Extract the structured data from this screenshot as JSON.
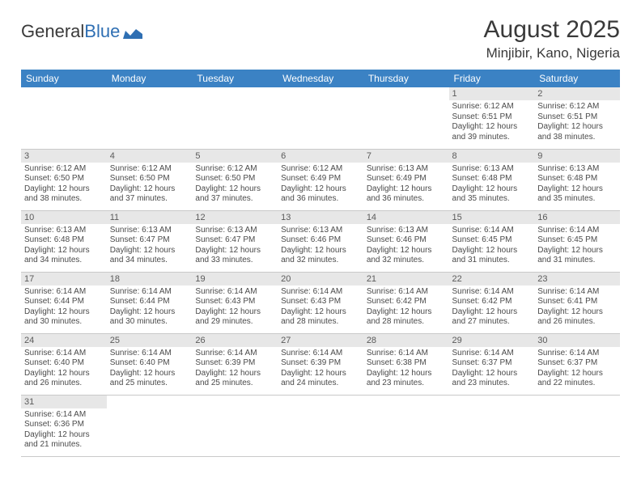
{
  "logo": {
    "text1": "General",
    "text2": "Blue"
  },
  "title": "August 2025",
  "location": "Minjibir, Kano, Nigeria",
  "colors": {
    "header_bg": "#3b82c4",
    "header_fg": "#ffffff",
    "daynum_bg": "#e7e7e7",
    "text": "#4a4a4a",
    "border": "#c9c9c9"
  },
  "weekdays": [
    "Sunday",
    "Monday",
    "Tuesday",
    "Wednesday",
    "Thursday",
    "Friday",
    "Saturday"
  ],
  "weeks": [
    [
      null,
      null,
      null,
      null,
      null,
      {
        "num": "1",
        "sunrise": "6:12 AM",
        "sunset": "6:51 PM",
        "daylight": "12 hours and 39 minutes."
      },
      {
        "num": "2",
        "sunrise": "6:12 AM",
        "sunset": "6:51 PM",
        "daylight": "12 hours and 38 minutes."
      }
    ],
    [
      {
        "num": "3",
        "sunrise": "6:12 AM",
        "sunset": "6:50 PM",
        "daylight": "12 hours and 38 minutes."
      },
      {
        "num": "4",
        "sunrise": "6:12 AM",
        "sunset": "6:50 PM",
        "daylight": "12 hours and 37 minutes."
      },
      {
        "num": "5",
        "sunrise": "6:12 AM",
        "sunset": "6:50 PM",
        "daylight": "12 hours and 37 minutes."
      },
      {
        "num": "6",
        "sunrise": "6:12 AM",
        "sunset": "6:49 PM",
        "daylight": "12 hours and 36 minutes."
      },
      {
        "num": "7",
        "sunrise": "6:13 AM",
        "sunset": "6:49 PM",
        "daylight": "12 hours and 36 minutes."
      },
      {
        "num": "8",
        "sunrise": "6:13 AM",
        "sunset": "6:48 PM",
        "daylight": "12 hours and 35 minutes."
      },
      {
        "num": "9",
        "sunrise": "6:13 AM",
        "sunset": "6:48 PM",
        "daylight": "12 hours and 35 minutes."
      }
    ],
    [
      {
        "num": "10",
        "sunrise": "6:13 AM",
        "sunset": "6:48 PM",
        "daylight": "12 hours and 34 minutes."
      },
      {
        "num": "11",
        "sunrise": "6:13 AM",
        "sunset": "6:47 PM",
        "daylight": "12 hours and 34 minutes."
      },
      {
        "num": "12",
        "sunrise": "6:13 AM",
        "sunset": "6:47 PM",
        "daylight": "12 hours and 33 minutes."
      },
      {
        "num": "13",
        "sunrise": "6:13 AM",
        "sunset": "6:46 PM",
        "daylight": "12 hours and 32 minutes."
      },
      {
        "num": "14",
        "sunrise": "6:13 AM",
        "sunset": "6:46 PM",
        "daylight": "12 hours and 32 minutes."
      },
      {
        "num": "15",
        "sunrise": "6:14 AM",
        "sunset": "6:45 PM",
        "daylight": "12 hours and 31 minutes."
      },
      {
        "num": "16",
        "sunrise": "6:14 AM",
        "sunset": "6:45 PM",
        "daylight": "12 hours and 31 minutes."
      }
    ],
    [
      {
        "num": "17",
        "sunrise": "6:14 AM",
        "sunset": "6:44 PM",
        "daylight": "12 hours and 30 minutes."
      },
      {
        "num": "18",
        "sunrise": "6:14 AM",
        "sunset": "6:44 PM",
        "daylight": "12 hours and 30 minutes."
      },
      {
        "num": "19",
        "sunrise": "6:14 AM",
        "sunset": "6:43 PM",
        "daylight": "12 hours and 29 minutes."
      },
      {
        "num": "20",
        "sunrise": "6:14 AM",
        "sunset": "6:43 PM",
        "daylight": "12 hours and 28 minutes."
      },
      {
        "num": "21",
        "sunrise": "6:14 AM",
        "sunset": "6:42 PM",
        "daylight": "12 hours and 28 minutes."
      },
      {
        "num": "22",
        "sunrise": "6:14 AM",
        "sunset": "6:42 PM",
        "daylight": "12 hours and 27 minutes."
      },
      {
        "num": "23",
        "sunrise": "6:14 AM",
        "sunset": "6:41 PM",
        "daylight": "12 hours and 26 minutes."
      }
    ],
    [
      {
        "num": "24",
        "sunrise": "6:14 AM",
        "sunset": "6:40 PM",
        "daylight": "12 hours and 26 minutes."
      },
      {
        "num": "25",
        "sunrise": "6:14 AM",
        "sunset": "6:40 PM",
        "daylight": "12 hours and 25 minutes."
      },
      {
        "num": "26",
        "sunrise": "6:14 AM",
        "sunset": "6:39 PM",
        "daylight": "12 hours and 25 minutes."
      },
      {
        "num": "27",
        "sunrise": "6:14 AM",
        "sunset": "6:39 PM",
        "daylight": "12 hours and 24 minutes."
      },
      {
        "num": "28",
        "sunrise": "6:14 AM",
        "sunset": "6:38 PM",
        "daylight": "12 hours and 23 minutes."
      },
      {
        "num": "29",
        "sunrise": "6:14 AM",
        "sunset": "6:37 PM",
        "daylight": "12 hours and 23 minutes."
      },
      {
        "num": "30",
        "sunrise": "6:14 AM",
        "sunset": "6:37 PM",
        "daylight": "12 hours and 22 minutes."
      }
    ],
    [
      {
        "num": "31",
        "sunrise": "6:14 AM",
        "sunset": "6:36 PM",
        "daylight": "12 hours and 21 minutes."
      },
      null,
      null,
      null,
      null,
      null,
      null
    ]
  ],
  "labels": {
    "sunrise": "Sunrise:",
    "sunset": "Sunset:",
    "daylight": "Daylight:"
  }
}
